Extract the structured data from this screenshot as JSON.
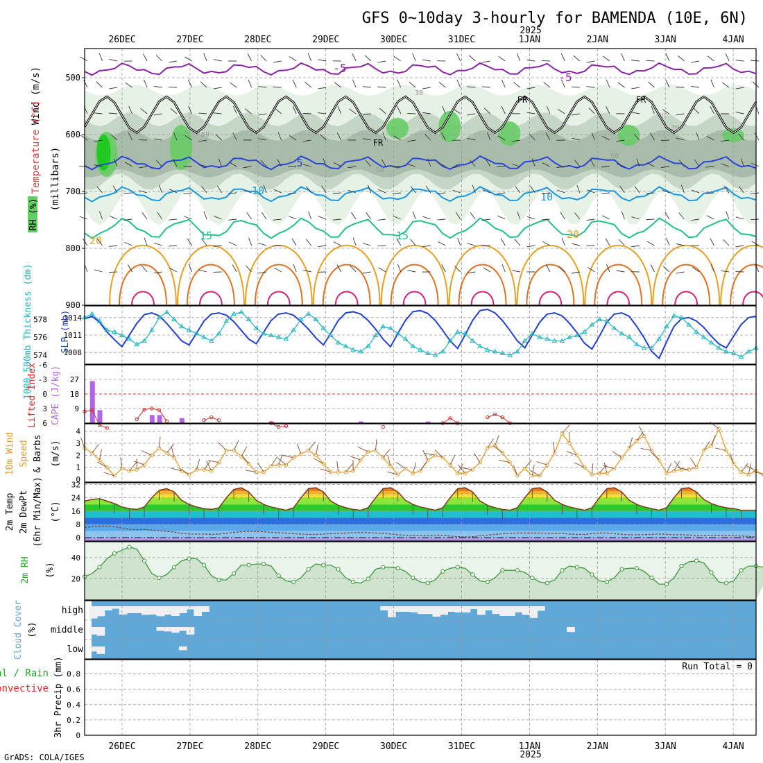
{
  "title": "GFS 0~10day 3-hourly for BAMENDA (10E, 6N)",
  "year_label": "2025",
  "credit": "GrADS: COLA/IGES",
  "run_total_label": "Run Total = 0",
  "date_labels": [
    "26DEC",
    "27DEC",
    "28DEC",
    "29DEC",
    "30DEC",
    "31DEC",
    "1JAN",
    "2JAN",
    "3JAN",
    "4JAN"
  ],
  "colors": {
    "frame": "#000000",
    "grid": "#999999",
    "rh_light": "#e6f2e6",
    "rh_mid": "#c5d6c5",
    "rh_dark": "#a9bba9",
    "rh_green": "#66cc66",
    "rh_bright": "#22c822",
    "t_minus5": "#8a22a8",
    "t_5": "#2a44d8",
    "t_10": "#1c96e0",
    "t_15": "#1ec08c",
    "t_20": "#e6a024",
    "t_25": "#e07020",
    "t_30": "#d81e74",
    "freezing": "#000000",
    "slp": "#2240d0",
    "thickness": "#20b4c0",
    "cape": "#b266e6",
    "lifted": "#e02828",
    "wind": "#e69a2a",
    "barb": "#8a4a2a",
    "temp_line": "#7a3a1a",
    "dewpt": "#7a4a3a",
    "rh2m_fill": "#cfe3cf",
    "rh2m_line": "#3a9a3a",
    "cloud_bg": "#5fa8d8",
    "cloud_clear": "#f2eef2",
    "precip_red": "#e02828",
    "precip_green": "#22a822"
  },
  "panels": {
    "upper": {
      "left_labels": {
        "wind": "Wind (m/s)",
        "temperature": "Temperature (°C)",
        "millibars": "(millibars)",
        "rh": "RH (%)"
      },
      "y_ticks": [
        "500",
        "600",
        "700",
        "800",
        "900"
      ],
      "contour_labels": [
        "-5",
        "-5",
        "5",
        "10",
        "10",
        "15",
        "15",
        "20",
        "20",
        "FR",
        "FR",
        "FR",
        "30",
        "50",
        "50",
        "50",
        "30"
      ]
    },
    "slp": {
      "left_label_thickness": "1000-500mb Thickness (dm)",
      "left_label_slp": "SLP (mb)",
      "thickness_ticks": [
        "578",
        "576",
        "574"
      ],
      "slp_ticks": [
        "1014",
        "1011",
        "1008"
      ]
    },
    "cape": {
      "left_label_li": "Lifted Index",
      "left_label_cape": "CAPE (J/kg)",
      "li_ticks": [
        "-6",
        "-3",
        "0",
        "3",
        "6"
      ],
      "cape_ticks": [
        "27",
        "18",
        "9"
      ]
    },
    "wind10m": {
      "left_label_a": "10m Wind",
      "left_label_b": "Speed",
      "left_label_c": "& Barbs",
      "unit": "(m/s)",
      "y_ticks": [
        "4",
        "3",
        "2",
        "1",
        "0"
      ]
    },
    "temp2m": {
      "left_label_a": "2m Temp",
      "left_label_b": "2m DewPt",
      "left_label_c": "(6hr Min/Max)",
      "unit": "(°C)",
      "y_ticks": [
        "32",
        "24",
        "16",
        "8",
        "0"
      ]
    },
    "rh2m": {
      "left_label": "2m RH",
      "unit": "(%)",
      "y_ticks": [
        "40",
        "20"
      ]
    },
    "cloud": {
      "left_label": "Cloud Cover",
      "unit": "(%)",
      "levels": [
        "high",
        "middle",
        "low"
      ]
    },
    "precip": {
      "left_label_a": "Total / Rain",
      "left_label_b": "Convective",
      "left_label_c": "3hr Precip (mm)",
      "y_ticks": [
        "0.8",
        "0.6",
        "0.4",
        "0.2",
        "0"
      ]
    }
  },
  "chart_data": [
    {
      "type": "line",
      "title": "1000-500mb Thickness (dm) and SLP (mb)",
      "x_start": "25DEC 12Z",
      "x_step_hours": 3,
      "series": [
        {
          "name": "SLP (mb)",
          "values": [
            1013.8,
            1014.2,
            1013.2,
            1011.5,
            1010.2,
            1009,
            1011,
            1013,
            1014.5,
            1014.8,
            1014.3,
            1013,
            1011.5,
            1010,
            1009.3,
            1011.3,
            1013.4,
            1014.6,
            1014.8,
            1014.4,
            1013.3,
            1011.8,
            1010.3,
            1009.5,
            1011.5,
            1013.5,
            1014.6,
            1014.8,
            1014.4,
            1013.3,
            1012,
            1010.5,
            1009.3,
            1011.3,
            1013.5,
            1014.8,
            1015,
            1014.6,
            1013.5,
            1012,
            1010.3,
            1009,
            1011.3,
            1013.5,
            1015,
            1015.2,
            1014.7,
            1013.5,
            1011.8,
            1010,
            1008.7,
            1011,
            1013.5,
            1015.2,
            1015.4,
            1014.8,
            1013.5,
            1011.8,
            1010,
            1008.8,
            1011,
            1013.2,
            1014.6,
            1014.8,
            1014.3,
            1013,
            1011.4,
            1009.6,
            1008.6,
            1010.8,
            1013.2,
            1014.6,
            1014.8,
            1014.2,
            1012.5,
            1010.5,
            1008.2,
            1007,
            1009.8,
            1012.5,
            1013.8,
            1014,
            1013.4,
            1012.3,
            1010.8,
            1009.5,
            1008.8,
            1010.8,
            1012.8,
            1014,
            1014.2
          ]
        },
        {
          "name": "1000-500mb Thickness (dm)",
          "values": [
            578.2,
            578.6,
            577.8,
            576.8,
            576.6,
            576.2,
            575.8,
            575.2,
            575.6,
            576.8,
            578.2,
            578.8,
            578.0,
            577.2,
            576.8,
            576.4,
            576.0,
            575.6,
            576.4,
            577.8,
            578.6,
            578.8,
            578.0,
            577.0,
            576.4,
            576.2,
            576.0,
            575.8,
            576.8,
            578.0,
            578.6,
            578.0,
            577.0,
            576.2,
            575.4,
            575.0,
            574.6,
            574.4,
            575.0,
            576.2,
            577.2,
            577.0,
            576.4,
            575.8,
            575.0,
            574.6,
            574.2,
            574.0,
            574.4,
            575.6,
            576.6,
            576.4,
            575.6,
            575.0,
            574.6,
            574.4,
            574.2,
            574.0,
            574.4,
            575.6,
            576.4,
            576.0,
            575.8,
            575.6,
            575.6,
            576.0,
            576.2,
            576.6,
            577.4,
            578.0,
            577.8,
            577.0,
            576.4,
            576.0,
            575.2,
            574.8,
            574.8,
            575.8,
            577.2,
            578.4,
            578.2,
            577.4,
            576.6,
            576.0,
            575.4,
            574.8,
            574.4,
            574.2,
            573.8,
            574.4,
            574.8
          ]
        }
      ],
      "ylim": {
        "slp": [
          1006,
          1016
        ],
        "thickness": [
          573,
          579.5
        ]
      }
    },
    {
      "type": "bar",
      "title": "CAPE (J/kg) and Lifted Index",
      "series": [
        {
          "name": "CAPE (J/kg)",
          "x_index": [
            1,
            2,
            9,
            10,
            13,
            25,
            37,
            46
          ],
          "values": [
            26,
            8,
            5,
            5,
            3,
            1,
            1,
            1
          ]
        },
        {
          "name": "Lifted Index",
          "x_index": [
            0,
            1,
            2,
            3,
            7,
            8,
            9,
            10,
            11,
            16,
            17,
            18,
            25,
            26,
            27,
            40,
            48,
            49,
            50,
            54,
            55,
            56,
            57
          ],
          "values": [
            3.6,
            3.3,
            6.4,
            7,
            5.2,
            3.2,
            3.0,
            3.3,
            5.6,
            5.4,
            4.8,
            5.4,
            6,
            6.8,
            6.6,
            6.8,
            6,
            5,
            6,
            4.8,
            4.2,
            4.8,
            6
          ]
        }
      ],
      "ylim": {
        "cape": [
          0,
          36
        ],
        "lifted": [
          -6,
          6
        ]
      }
    },
    {
      "type": "line",
      "title": "10m Wind Speed (m/s)",
      "series": [
        {
          "name": "10m Wind Speed (m/s)",
          "values": [
            2.6,
            2.2,
            1.6,
            1.0,
            0.3,
            0.9,
            0.7,
            0.8,
            1.2,
            2.0,
            2.6,
            2.2,
            1.8,
            0.7,
            0.4,
            0.8,
            0.8,
            0.7,
            1.4,
            2.4,
            2.4,
            1.9,
            1.3,
            0.6,
            0.6,
            1.1,
            1.2,
            1.2,
            1.8,
            2.1,
            2.4,
            2.0,
            1.3,
            0.6,
            0.6,
            0.6,
            0.7,
            1.6,
            2.3,
            2.4,
            1.8,
            1.1,
            0.4,
            0.9,
            0.5,
            0.7,
            1.6,
            2.0,
            1.8,
            1.2,
            0.5,
            0.5,
            0.8,
            1.4,
            2.6,
            2.8,
            2.2,
            1.4,
            0.3,
            0.9,
            0.3,
            0.3,
            1.2,
            2.2,
            3.8,
            3.0,
            2.0,
            1.0,
            0.4,
            0.5,
            0.5,
            0.9,
            1.8,
            2.6,
            3.2,
            3.6,
            2.4,
            1.6,
            0.5,
            0.7,
            0.8,
            0.8,
            1.0,
            2.4,
            2.8,
            4.2,
            2.4,
            1.3,
            0.6,
            0.4,
            0.7,
            0.4
          ]
        }
      ],
      "ylim": [
        0,
        4.5
      ]
    },
    {
      "type": "area",
      "title": "2m Temp (°C)",
      "series": [
        {
          "name": "2m Temp (°C)",
          "values": [
            22,
            23,
            23.4,
            22,
            20.5,
            18.5,
            17.5,
            17,
            18.5,
            24,
            28.5,
            29.5,
            27.5,
            22.5,
            20,
            18.5,
            17.5,
            17,
            18,
            24,
            29,
            30,
            27.5,
            22.5,
            20,
            18.5,
            17.5,
            16.5,
            18,
            24,
            29.5,
            30,
            27.5,
            22,
            19.5,
            18,
            17,
            16.5,
            18,
            24,
            29.5,
            30,
            27.5,
            22.5,
            20,
            18.5,
            17.5,
            16.5,
            18,
            24,
            29.5,
            30,
            27.5,
            22,
            19.5,
            18,
            17,
            16.5,
            18,
            24,
            29.5,
            30,
            27.5,
            22.5,
            20,
            18.5,
            17.5,
            16.5,
            18,
            24,
            29.5,
            30,
            27.5,
            22.5,
            20,
            18.5,
            17.5,
            16.5,
            18,
            24,
            29.5,
            30,
            27.5,
            23,
            20.5,
            19,
            18,
            17.5,
            16.5,
            16.5,
            16.5
          ]
        },
        {
          "name": "2m DewPt (°C)",
          "values": [
            6.2,
            6.6,
            7,
            7,
            6.6,
            5.8,
            5,
            4.8,
            5,
            4.6,
            4.2,
            3.8,
            3.4,
            2.6,
            2.2,
            2.2,
            2.2,
            2,
            2.2,
            2.6,
            3.2,
            3.6,
            3.8,
            3.8,
            3.6,
            3.2,
            3,
            2.8,
            2.4,
            2.2,
            2,
            2,
            2.2,
            2.4,
            2.6,
            2.8,
            3,
            3.2,
            3,
            2.8,
            2.6,
            2.2,
            1.8,
            1.4,
            1.2,
            1.2,
            1.4,
            1.6,
            1.4,
            1,
            0.6,
            0.4,
            0.6,
            1.2,
            1.6,
            2,
            2.4,
            2.6,
            2.8,
            2.8,
            2.8,
            2.8,
            2.6,
            2.6,
            2.6,
            2.2,
            2,
            2,
            2.4,
            2.8,
            2.8,
            2.4,
            2,
            1.8,
            1.8,
            1.8,
            2,
            2.2,
            2,
            1.8,
            1.8,
            1.6,
            1.4,
            1.2,
            1.2,
            1.2,
            1.2,
            1.2,
            1,
            0.8,
            0.4
          ]
        }
      ],
      "ylim": [
        -2,
        33
      ]
    },
    {
      "type": "area",
      "title": "2m RH (%)",
      "series": [
        {
          "name": "2m RH (%)",
          "values": [
            22,
            25,
            31,
            39,
            44,
            47,
            50,
            48,
            37,
            25,
            21,
            24,
            31,
            37,
            39,
            39,
            33,
            23,
            19,
            19,
            25,
            33,
            33,
            34,
            34,
            32,
            23,
            18,
            17,
            21,
            29,
            34,
            33,
            33,
            29,
            21,
            17,
            16,
            20,
            29,
            31,
            31,
            30,
            27,
            21,
            17,
            16,
            19,
            27,
            30,
            31,
            30,
            24,
            18,
            17,
            21,
            28,
            28,
            28,
            26,
            21,
            17,
            16,
            19,
            28,
            32,
            31,
            30,
            24,
            18,
            17,
            21,
            29,
            30,
            30,
            27,
            21,
            15,
            15,
            21,
            32,
            36,
            37,
            35,
            26,
            17,
            16,
            18,
            28,
            32,
            32,
            31,
            29
          ]
        }
      ],
      "ylim": [
        0,
        55
      ]
    },
    {
      "type": "bar",
      "title": "Cloud Cover (%)",
      "series": [
        {
          "name": "high (clear fraction)",
          "values": [
            0.88,
            0.72,
            0.3,
            0.18,
            0.6,
            0.5,
            0.5,
            0.62,
            0.6,
            0.72,
            0.6,
            0.7,
            0.5,
            0.22,
            0.7,
            0.4,
            0.3,
            0.8,
            0.4,
            0.4,
            0.44,
            0.56,
            0.56,
            0.75,
            0.62,
            0.4,
            0.45,
            0.45,
            0.2,
            0.62,
            0.3,
            0.56,
            0.7,
            0.7,
            0.44,
            0.62,
            0.84,
            0.32
          ]
        },
        {
          "name": "middle (clear fraction)",
          "values": [
            0.6,
            0.7,
            0.3,
            0.35,
            0.45,
            0.3,
            0.6,
            0.4
          ]
        },
        {
          "name": "low (clear fraction)",
          "values": [
            0.4,
            0.6,
            0.3
          ]
        }
      ]
    },
    {
      "type": "bar",
      "title": "3hr Precip (mm)",
      "series": [],
      "ylim": [
        0,
        1
      ],
      "run_total": 0
    }
  ]
}
